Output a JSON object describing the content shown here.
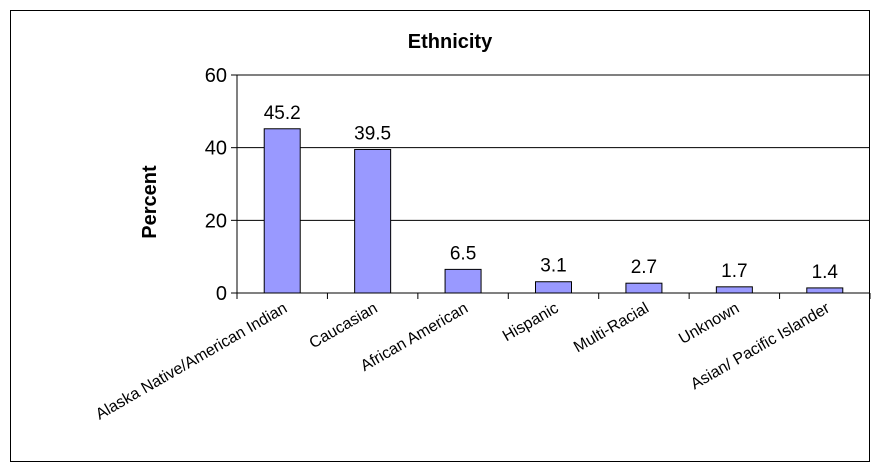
{
  "chart_data": {
    "type": "bar",
    "title": "Ethnicity",
    "xlabel": "",
    "ylabel": "Percent",
    "ylim": [
      0,
      60
    ],
    "yticks": [
      0,
      20,
      40,
      60
    ],
    "grid": true,
    "bar_color": "#9999ff",
    "categories": [
      "Alaska Native/American Indian",
      "Caucasian",
      "African American",
      "Hispanic",
      "Multi-Racial",
      "Unknown",
      "Asian/ Pacific Islander"
    ],
    "values": [
      45.2,
      39.5,
      6.5,
      3.1,
      2.7,
      1.7,
      1.4
    ],
    "value_labels": [
      "45.2",
      "39.5",
      "6.5",
      "3.1",
      "2.7",
      "1.7",
      "1.4"
    ]
  }
}
